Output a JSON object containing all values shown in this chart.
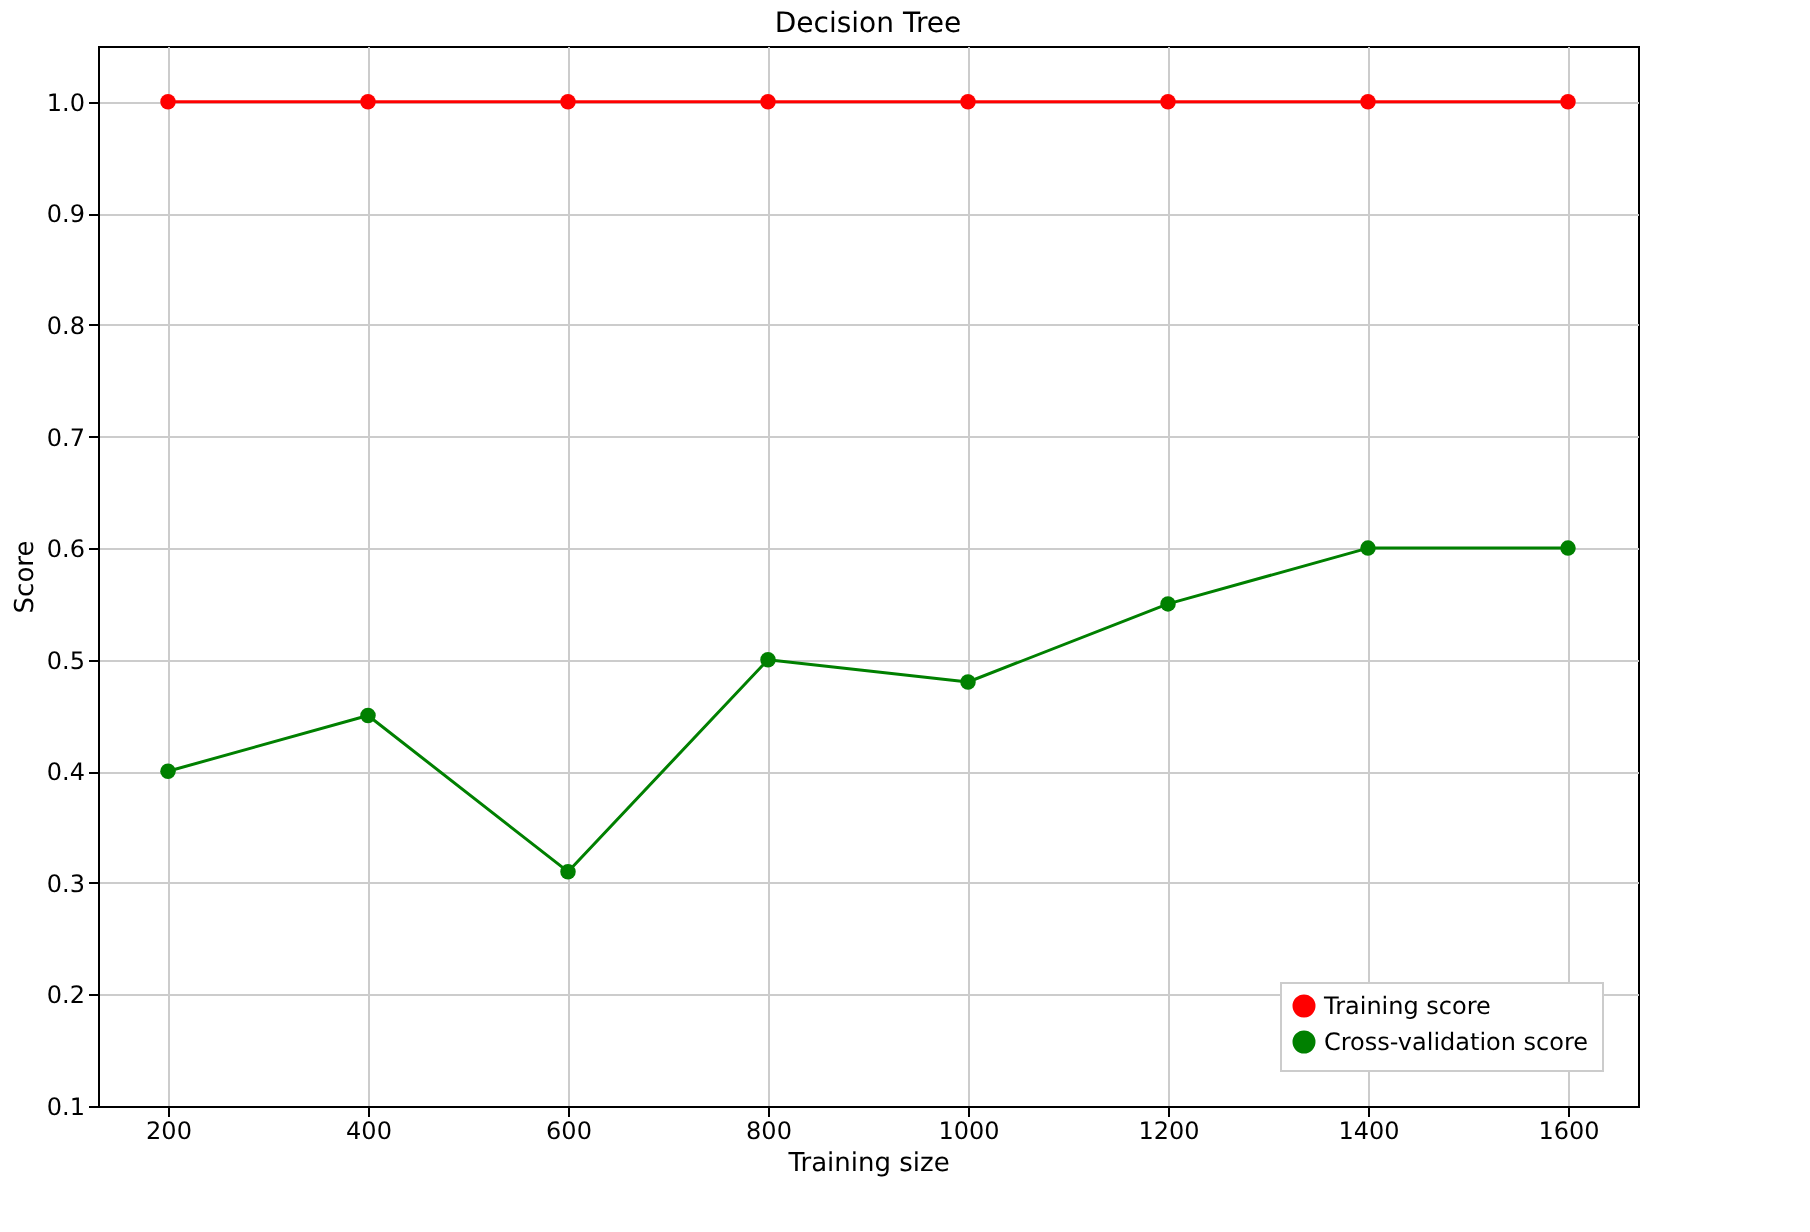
{
  "chart_data": {
    "type": "line",
    "title": "Decision Tree",
    "xlabel": "Training size",
    "ylabel": "Score",
    "x": [
      200,
      400,
      600,
      800,
      1000,
      1200,
      1400,
      1600
    ],
    "series": [
      {
        "name": "Training score",
        "color": "#ff0000",
        "values": [
          1.0,
          1.0,
          1.0,
          1.0,
          1.0,
          1.0,
          1.0,
          1.0
        ]
      },
      {
        "name": "Cross-validation score",
        "color": "#008000",
        "values": [
          0.4,
          0.45,
          0.31,
          0.5,
          0.48,
          0.55,
          0.6,
          0.6
        ]
      }
    ],
    "xlim": [
      130,
      1670
    ],
    "xticks": [
      200,
      400,
      600,
      800,
      1000,
      1200,
      1400,
      1600
    ],
    "ylim": [
      0.1,
      1.05
    ],
    "yticks": [
      0.1,
      0.2,
      0.3,
      0.4,
      0.5,
      0.6,
      0.7,
      0.8,
      0.9,
      {
        "value": 1,
        "label": "1.0"
      }
    ],
    "grid": true,
    "legend": "bottom right",
    "marker": "circle",
    "line_style": "solid"
  }
}
